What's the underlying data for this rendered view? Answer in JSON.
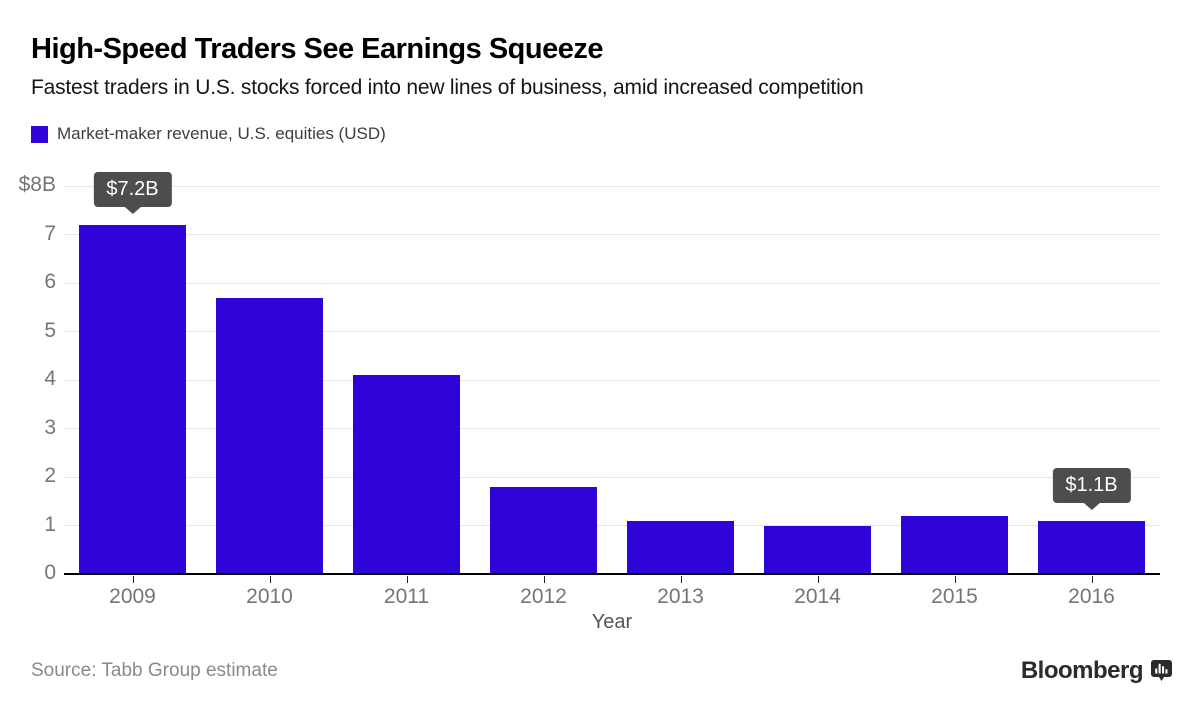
{
  "header": {
    "title": "High-Speed Traders See Earnings Squeeze",
    "subtitle": "Fastest traders in U.S. stocks forced into new lines of business, amid increased competition"
  },
  "legend": {
    "label": "Market-maker revenue, U.S. equities (USD)"
  },
  "chart_data": {
    "type": "bar",
    "title": "High-Speed Traders See Earnings Squeeze",
    "subtitle": "Fastest traders in U.S. stocks forced into new lines of business, amid increased competition",
    "series_name": "Market-maker revenue, U.S. equities (USD)",
    "categories": [
      "2009",
      "2010",
      "2011",
      "2012",
      "2013",
      "2014",
      "2015",
      "2016"
    ],
    "values": [
      7.2,
      5.7,
      4.1,
      1.8,
      1.1,
      1.0,
      1.2,
      1.1
    ],
    "unit": "USD billions",
    "xlabel": "Year",
    "ylabel": "",
    "ylim": [
      0,
      8
    ],
    "grid": true,
    "legend_position": "top-left",
    "y_ticks": [
      {
        "value": 0,
        "label": "0"
      },
      {
        "value": 1,
        "label": "1"
      },
      {
        "value": 2,
        "label": "2"
      },
      {
        "value": 3,
        "label": "3"
      },
      {
        "value": 4,
        "label": "4"
      },
      {
        "value": 5,
        "label": "5"
      },
      {
        "value": 6,
        "label": "6"
      },
      {
        "value": 7,
        "label": "7"
      },
      {
        "value": 8,
        "label": "$8B"
      }
    ],
    "annotations": [
      {
        "category": "2009",
        "label": "$7.2B"
      },
      {
        "category": "2016",
        "label": "$1.1B"
      }
    ],
    "bar_color": "#2e04d8",
    "callout_color": "#4d4d4d"
  },
  "footer": {
    "source": "Source: Tabb Group estimate",
    "brand": "Bloomberg",
    "brand_icon": "bloomberg-bars-badge-icon"
  }
}
